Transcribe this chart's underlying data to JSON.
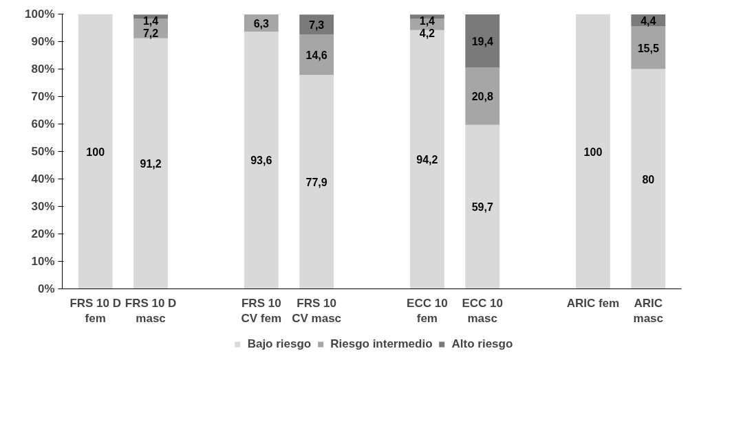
{
  "chart_data": {
    "type": "bar",
    "stacked": true,
    "categories": [
      "FRS 10 D fem",
      "FRS 10 D masc",
      null,
      "FRS 10 CV fem",
      "FRS 10 CV masc",
      null,
      "ECC 10 fem",
      "ECC 10 masc",
      null,
      "ARIC fem",
      "ARIC masc"
    ],
    "series": [
      {
        "name": "Bajo riesgo",
        "color": "#d9d9d9",
        "values": [
          100,
          91.2,
          null,
          93.6,
          77.9,
          null,
          94.2,
          59.7,
          null,
          100,
          80
        ],
        "value_labels": [
          "100",
          "91,2",
          null,
          "93,6",
          "77,9",
          null,
          "94,2",
          "59,7",
          null,
          "100",
          "80"
        ]
      },
      {
        "name": "Riesgo intermedio",
        "color": "#a6a6a6",
        "values": [
          0,
          7.2,
          null,
          6.3,
          14.6,
          null,
          4.2,
          20.8,
          null,
          0,
          15.5
        ],
        "value_labels": [
          null,
          "7,2",
          null,
          "6,3",
          "14,6",
          null,
          "4,2",
          "20,8",
          null,
          null,
          "15,5"
        ]
      },
      {
        "name": "Alto riesgo",
        "color": "#7a7a7a",
        "values": [
          0,
          1.4,
          null,
          0,
          7.3,
          null,
          1.4,
          19.4,
          null,
          0,
          4.4
        ],
        "value_labels": [
          null,
          "1,4",
          null,
          null,
          "7,3",
          null,
          "1,4",
          "19,4",
          null,
          null,
          "4,4"
        ]
      }
    ],
    "ylim": [
      0,
      100
    ],
    "yticks": [
      {
        "value": 0,
        "label": "0%"
      },
      {
        "value": 10,
        "label": "10%"
      },
      {
        "value": 20,
        "label": "20%"
      },
      {
        "value": 30,
        "label": "30%"
      },
      {
        "value": 40,
        "label": "40%"
      },
      {
        "value": 50,
        "label": "50%"
      },
      {
        "value": 60,
        "label": "60%"
      },
      {
        "value": 70,
        "label": "70%"
      },
      {
        "value": 80,
        "label": "80%"
      },
      {
        "value": 90,
        "label": "90%"
      },
      {
        "value": 100,
        "label": "100%"
      }
    ],
    "grid": false,
    "legend": "bottom"
  }
}
